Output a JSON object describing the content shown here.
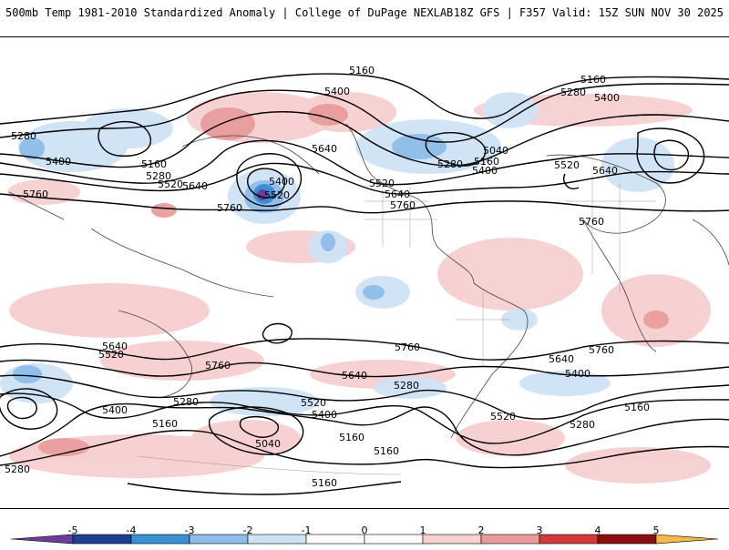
{
  "header": {
    "title_left": "500mb Temp 1981-2010 Standardized Anomaly | College of DuPage NEXLAB",
    "title_right": "18Z GFS | F357 Valid: 15Z SUN NOV 30 2025"
  },
  "map": {
    "variable": "500mb height contours (dam) over temperature standardized anomaly shading",
    "contour_labels": [
      "5280",
      "5400",
      "5160",
      "5280",
      "5520",
      "5640",
      "5760",
      "5160",
      "5400",
      "5640",
      "5400",
      "5520",
      "5760",
      "5520",
      "5640",
      "5760",
      "5280",
      "5160",
      "5400",
      "5040",
      "5160",
      "5280",
      "5400",
      "5640",
      "5520",
      "5760",
      "5640",
      "5520",
      "5760",
      "5400",
      "5280",
      "5160",
      "5040",
      "5160",
      "5400",
      "5520",
      "5640",
      "5760",
      "5160",
      "5280",
      "5520",
      "5640",
      "5760",
      "5400",
      "5160",
      "5280"
    ]
  },
  "colorbar": {
    "labels": [
      "-5",
      "-4",
      "-3",
      "-2",
      "-1",
      "0",
      "1",
      "2",
      "3",
      "4",
      "5"
    ],
    "colors": [
      "#6a3d9a",
      "#1f3f8f",
      "#3a8fd6",
      "#8dbde8",
      "#cfe3f5",
      "#ffffff",
      "#ffffff",
      "#f8d2d2",
      "#e99a9a",
      "#d23a3a",
      "#8a0e0e",
      "#f2b84a"
    ]
  }
}
